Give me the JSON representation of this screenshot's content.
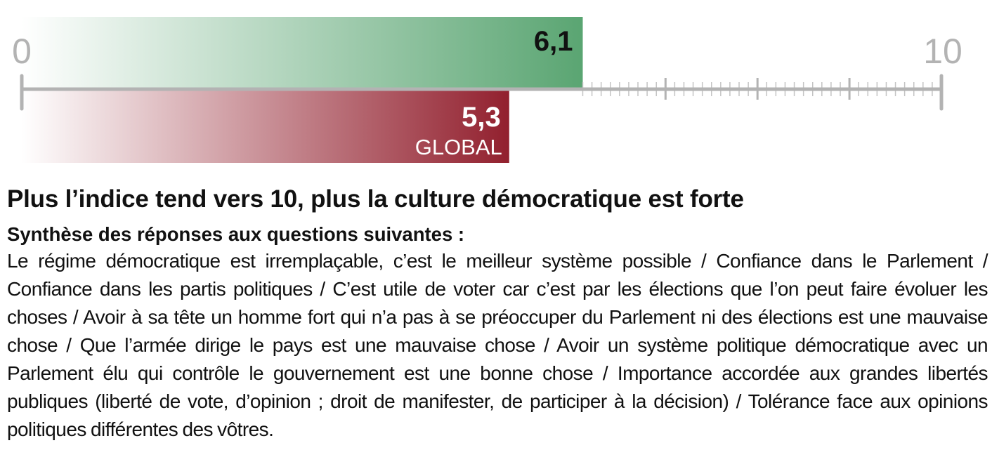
{
  "chart_data": {
    "type": "bar",
    "xlim": [
      0,
      10
    ],
    "axis_ticks": [
      "0",
      "10"
    ],
    "series": [
      {
        "value": 6.1,
        "value_label": "6,1",
        "color": "#5aa572"
      },
      {
        "value": 5.3,
        "value_label": "5,3",
        "sublabel": "GLOBAL",
        "color": "#92202e"
      }
    ]
  },
  "caption": {
    "title": "Plus l’indice tend vers 10, plus la culture démocratique est forte",
    "subtitle": "Synthèse des réponses aux questions suivantes :",
    "body": "Le régime démocratique est irremplaçable, c’est le meilleur système possible / Confiance dans le Parlement / Confiance dans les partis politiques / C’est utile de voter car c’est par les élections que l’on peut faire évoluer les choses / Avoir à sa tête un homme fort qui n’a pas à se préoccuper du Parlement ni des élections est une mauvaise chose / Que l’armée dirige le pays est une mauvaise chose / Avoir un système politique démocratique avec un Parlement élu qui contrôle le gouvernement est une bonne chose / Importance accordée aux grandes libertés publiques (liberté de vote, d’opinion ; droit de manifester, de participer à la décision) / Tolérance face aux opinions politiques différentes des vôtres."
  }
}
